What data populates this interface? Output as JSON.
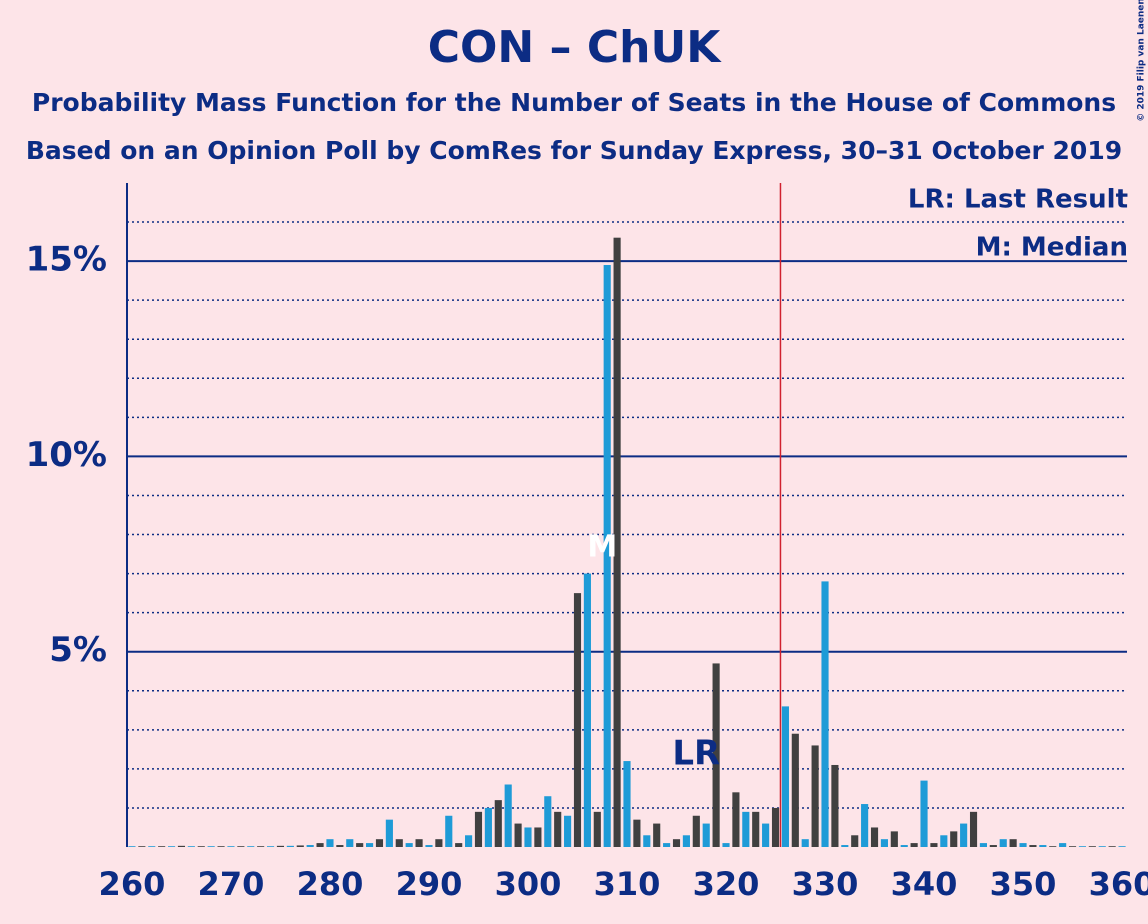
{
  "chart_data": {
    "type": "bar",
    "title": "CON – ChUK",
    "subtitle": "Probability Mass Function for the Number of Seats in the House of Commons",
    "subtitle2": "Based on an Opinion Poll by ComRes for Sunday Express, 30–31 October 2019",
    "copyright": "© 2019 Filip van Laenen",
    "legend": [
      "LR: Last Result",
      "M: Median"
    ],
    "x": [
      260,
      261,
      262,
      263,
      264,
      265,
      266,
      267,
      268,
      269,
      270,
      271,
      272,
      273,
      274,
      275,
      276,
      277,
      278,
      279,
      280,
      281,
      282,
      283,
      284,
      285,
      286,
      287,
      288,
      289,
      290,
      291,
      292,
      293,
      294,
      295,
      296,
      297,
      298,
      299,
      300,
      301,
      302,
      303,
      304,
      305,
      306,
      307,
      308,
      309,
      310,
      311,
      312,
      313,
      314,
      315,
      316,
      317,
      318,
      319,
      320,
      321,
      322,
      323,
      324,
      325,
      326,
      327,
      328,
      329,
      330,
      331,
      332,
      333,
      334,
      335,
      336,
      337,
      338,
      339,
      340,
      341,
      342,
      343,
      344,
      345,
      346,
      347,
      348,
      349,
      350,
      351,
      352,
      353,
      354,
      355,
      356,
      357,
      358,
      359,
      360
    ],
    "values": [
      0.02,
      0.02,
      0.02,
      0.02,
      0.02,
      0.03,
      0.02,
      0.02,
      0.02,
      0.02,
      0.02,
      0.02,
      0.02,
      0.02,
      0.02,
      0.03,
      0.03,
      0.04,
      0.05,
      0.1,
      0.2,
      0.05,
      0.2,
      0.1,
      0.1,
      0.2,
      0.7,
      0.2,
      0.1,
      0.2,
      0.05,
      0.2,
      0.8,
      0.1,
      0.3,
      0.9,
      1.0,
      1.2,
      1.6,
      0.6,
      0.5,
      0.5,
      1.3,
      0.9,
      0.8,
      6.5,
      7.0,
      0.9,
      14.9,
      15.6,
      2.2,
      0.7,
      0.3,
      0.6,
      0.1,
      0.2,
      0.3,
      0.8,
      0.6,
      4.7,
      0.1,
      1.4,
      0.9,
      0.9,
      0.6,
      1.0,
      3.6,
      2.9,
      0.2,
      2.6,
      6.8,
      2.1,
      0.05,
      0.3,
      1.1,
      0.5,
      0.2,
      0.4,
      0.05,
      0.1,
      1.7,
      0.1,
      0.3,
      0.4,
      0.6,
      0.9,
      0.1,
      0.05,
      0.2,
      0.2,
      0.1,
      0.05,
      0.05,
      0.02,
      0.1,
      0.02,
      0.02,
      0.02,
      0.02,
      0.02,
      0.02
    ],
    "bar_colors": [
      "#1e9bd7",
      "#404040"
    ],
    "xlim": [
      259.5,
      360.5
    ],
    "xticks": [
      260,
      270,
      280,
      290,
      300,
      310,
      320,
      330,
      340,
      350,
      360
    ],
    "ylim": [
      0,
      17
    ],
    "yticks": [
      {
        "value": 5,
        "label": "5%"
      },
      {
        "value": 10,
        "label": "10%"
      },
      {
        "value": 15,
        "label": "15%"
      }
    ],
    "minor_yticks": [
      1,
      2,
      3,
      4,
      6,
      7,
      8,
      9,
      11,
      12,
      13,
      14,
      16
    ],
    "majority": 326,
    "majority_color": "#d0202e",
    "last_result": {
      "x": 317,
      "label": "LR"
    },
    "median": {
      "x": 307,
      "label": "M"
    }
  }
}
